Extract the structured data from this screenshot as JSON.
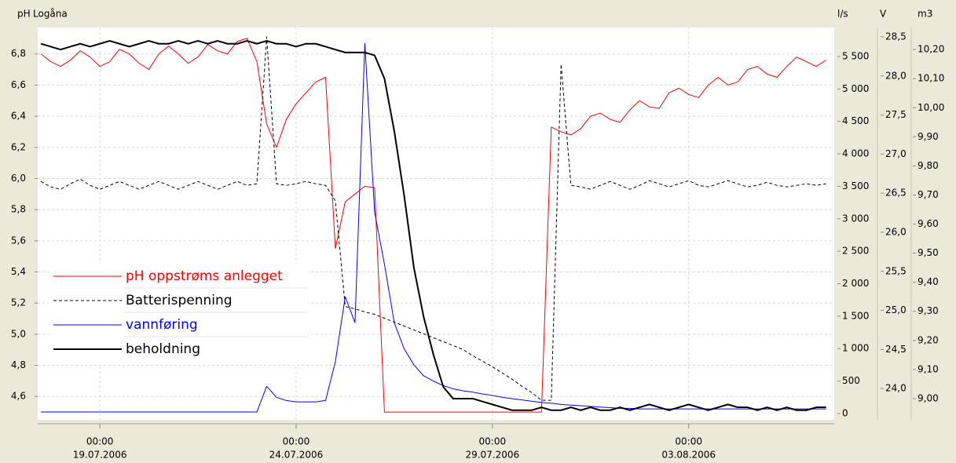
{
  "chart_data": {
    "type": "line",
    "title": "Logåna",
    "ylabel": "pH",
    "y2label": "l/s",
    "y3label": "V",
    "y4label": "m3",
    "grid": true,
    "legend": "left",
    "xlim": [
      "2006-07-17T10:00",
      "2006-08-06T17:00"
    ],
    "xticks": [
      {
        "value": "2006-07-19T00:00",
        "label": [
          "00:00",
          "19.07.2006"
        ]
      },
      {
        "value": "2006-07-24T00:00",
        "label": [
          "00:00",
          "24.07.2006"
        ]
      },
      {
        "value": "2006-07-29T00:00",
        "label": [
          "00:00",
          "29.07.2006"
        ]
      },
      {
        "value": "2006-08-03T00:00",
        "label": [
          "00:00",
          "03.08.2006"
        ]
      }
    ],
    "ylim": [
      4.45,
      6.97
    ],
    "yticks": [
      {
        "value": 4.6,
        "label": "4,6"
      },
      {
        "value": 4.8,
        "label": "4,8"
      },
      {
        "value": 5.0,
        "label": "5,0"
      },
      {
        "value": 5.2,
        "label": "5,2"
      },
      {
        "value": 5.4,
        "label": "5,4"
      },
      {
        "value": 5.6,
        "label": "5,6"
      },
      {
        "value": 5.8,
        "label": "5,8"
      },
      {
        "value": 6.0,
        "label": "6,0"
      },
      {
        "value": 6.2,
        "label": "6,2"
      },
      {
        "value": 6.4,
        "label": "6,4"
      },
      {
        "value": 6.6,
        "label": "6,6"
      },
      {
        "value": 6.8,
        "label": "6,8"
      }
    ],
    "y2lim": [
      -97,
      5947
    ],
    "y2ticks": [
      0,
      500,
      {
        "value": 1000,
        "label": "1 000"
      },
      {
        "value": 1500,
        "label": "1 500"
      },
      {
        "value": 2000,
        "label": "2 000"
      },
      {
        "value": 2500,
        "label": "2 500"
      },
      {
        "value": 3000,
        "label": "3 000"
      },
      {
        "value": 3500,
        "label": "3 500"
      },
      {
        "value": 4000,
        "label": "4 000"
      },
      {
        "value": 4500,
        "label": "4 500"
      },
      {
        "value": 5000,
        "label": "5 000"
      },
      {
        "value": 5500,
        "label": "5 500"
      }
    ],
    "y3lim": [
      23.6,
      28.62
    ],
    "y3ticks": [
      {
        "value": 24.0,
        "label": "24,0"
      },
      {
        "value": 24.5,
        "label": "24,5"
      },
      {
        "value": 25.0,
        "label": "25,0"
      },
      {
        "value": 25.5,
        "label": "25,5"
      },
      {
        "value": 26.0,
        "label": "26,0"
      },
      {
        "value": 26.5,
        "label": "26,5"
      },
      {
        "value": 27.0,
        "label": "27,0"
      },
      {
        "value": 27.5,
        "label": "27,5"
      },
      {
        "value": 28.0,
        "label": "28,0"
      },
      {
        "value": 28.5,
        "label": "28,5"
      }
    ],
    "y4lim": [
      8.927,
      10.276
    ],
    "y4ticks": [
      {
        "value": 9.0,
        "label": "9,00"
      },
      {
        "value": 9.1,
        "label": "9,10"
      },
      {
        "value": 9.2,
        "label": "9,20"
      },
      {
        "value": 9.3,
        "label": "9,30"
      },
      {
        "value": 9.4,
        "label": "9,40"
      },
      {
        "value": 9.5,
        "label": "9,50"
      },
      {
        "value": 9.6,
        "label": "9,60"
      },
      {
        "value": 9.7,
        "label": "9,70"
      },
      {
        "value": 9.8,
        "label": "9,80"
      },
      {
        "value": 9.9,
        "label": "9,90"
      },
      {
        "value": 10.0,
        "label": "10,00"
      },
      {
        "value": 10.1,
        "label": "10,10"
      },
      {
        "value": 10.2,
        "label": "10,20"
      }
    ],
    "x": [
      "2006-07-17T12:00",
      "2006-07-17T18:00",
      "2006-07-18T00:00",
      "2006-07-18T06:00",
      "2006-07-18T12:00",
      "2006-07-18T18:00",
      "2006-07-19T00:00",
      "2006-07-19T06:00",
      "2006-07-19T12:00",
      "2006-07-19T18:00",
      "2006-07-20T00:00",
      "2006-07-20T06:00",
      "2006-07-20T12:00",
      "2006-07-20T18:00",
      "2006-07-21T00:00",
      "2006-07-21T06:00",
      "2006-07-21T12:00",
      "2006-07-21T18:00",
      "2006-07-22T00:00",
      "2006-07-22T06:00",
      "2006-07-22T12:00",
      "2006-07-22T18:00",
      "2006-07-23T00:00",
      "2006-07-23T06:00",
      "2006-07-23T12:00",
      "2006-07-23T18:00",
      "2006-07-24T00:00",
      "2006-07-24T06:00",
      "2006-07-24T12:00",
      "2006-07-24T18:00",
      "2006-07-25T00:00",
      "2006-07-25T06:00",
      "2006-07-25T12:00",
      "2006-07-25T18:00",
      "2006-07-26T00:00",
      "2006-07-26T06:00",
      "2006-07-26T12:00",
      "2006-07-26T18:00",
      "2006-07-27T00:00",
      "2006-07-27T06:00",
      "2006-07-27T12:00",
      "2006-07-27T18:00",
      "2006-07-28T00:00",
      "2006-07-28T06:00",
      "2006-07-28T12:00",
      "2006-07-28T18:00",
      "2006-07-29T00:00",
      "2006-07-29T06:00",
      "2006-07-29T12:00",
      "2006-07-29T18:00",
      "2006-07-30T00:00",
      "2006-07-30T06:00",
      "2006-07-30T12:00",
      "2006-07-30T18:00",
      "2006-07-31T00:00",
      "2006-07-31T06:00",
      "2006-07-31T12:00",
      "2006-07-31T18:00",
      "2006-08-01T00:00",
      "2006-08-01T06:00",
      "2006-08-01T12:00",
      "2006-08-01T18:00",
      "2006-08-02T00:00",
      "2006-08-02T06:00",
      "2006-08-02T12:00",
      "2006-08-02T18:00",
      "2006-08-03T00:00",
      "2006-08-03T06:00",
      "2006-08-03T12:00",
      "2006-08-03T18:00",
      "2006-08-04T00:00",
      "2006-08-04T06:00",
      "2006-08-04T12:00",
      "2006-08-04T18:00",
      "2006-08-05T00:00",
      "2006-08-05T06:00",
      "2006-08-05T12:00",
      "2006-08-05T18:00",
      "2006-08-06T00:00",
      "2006-08-06T06:00",
      "2006-08-06T12:00"
    ],
    "series": [
      {
        "name": "pH oppstrøms anlegget",
        "color": "#ff0000",
        "axis": "y",
        "line_style": "solid",
        "line_width": 1,
        "values": [
          6.8,
          6.75,
          6.72,
          6.76,
          6.82,
          6.78,
          6.72,
          6.75,
          6.83,
          6.8,
          6.74,
          6.7,
          6.8,
          6.85,
          6.8,
          6.74,
          6.78,
          6.86,
          6.82,
          6.8,
          6.88,
          6.9,
          6.75,
          6.35,
          6.2,
          6.38,
          6.48,
          6.55,
          6.62,
          6.65,
          5.55,
          5.85,
          5.9,
          5.95,
          5.94,
          4.5,
          4.5,
          4.5,
          4.5,
          4.5,
          4.5,
          4.5,
          4.5,
          4.5,
          4.5,
          4.5,
          4.5,
          4.5,
          4.5,
          4.5,
          4.5,
          4.5,
          6.33,
          6.3,
          6.28,
          6.32,
          6.4,
          6.42,
          6.38,
          6.36,
          6.44,
          6.5,
          6.46,
          6.45,
          6.55,
          6.58,
          6.54,
          6.52,
          6.6,
          6.65,
          6.6,
          6.62,
          6.7,
          6.72,
          6.67,
          6.65,
          6.72,
          6.78,
          6.75,
          6.72,
          6.76
        ]
      },
      {
        "name": "Batterispenning",
        "color": "#000000",
        "axis": "y3",
        "line_style": "dashed",
        "line_width": 1,
        "values": [
          26.65,
          26.58,
          26.55,
          26.62,
          26.68,
          26.6,
          26.55,
          26.6,
          26.65,
          26.6,
          26.55,
          26.6,
          26.65,
          26.6,
          26.55,
          26.6,
          26.65,
          26.6,
          26.55,
          26.6,
          26.65,
          26.6,
          26.62,
          28.5,
          26.62,
          26.6,
          26.62,
          26.65,
          26.62,
          26.6,
          26.4,
          25.05,
          25.02,
          24.98,
          24.95,
          24.9,
          24.85,
          24.8,
          24.75,
          24.7,
          24.65,
          24.6,
          24.55,
          24.5,
          24.42,
          24.35,
          24.28,
          24.2,
          24.12,
          24.03,
          23.95,
          23.85,
          23.85,
          28.15,
          26.6,
          26.58,
          26.55,
          26.6,
          26.65,
          26.6,
          26.55,
          26.6,
          26.66,
          26.62,
          26.58,
          26.62,
          26.66,
          26.6,
          26.58,
          26.62,
          26.66,
          26.62,
          26.58,
          26.6,
          26.64,
          26.6,
          26.58,
          26.6,
          26.62,
          26.6,
          26.62
        ]
      },
      {
        "name": "vannføring",
        "color": "#0000ff",
        "axis": "y2",
        "line_style": "solid",
        "line_width": 1,
        "values": [
          24,
          24,
          24,
          24,
          24,
          24,
          24,
          24,
          24,
          24,
          24,
          24,
          24,
          24,
          24,
          24,
          24,
          24,
          24,
          24,
          24,
          24,
          24,
          420,
          250,
          200,
          180,
          180,
          180,
          200,
          800,
          1800,
          1400,
          5700,
          3100,
          2300,
          1400,
          1000,
          750,
          580,
          500,
          430,
          380,
          350,
          330,
          300,
          280,
          250,
          230,
          210,
          190,
          170,
          160,
          140,
          130,
          120,
          110,
          100,
          90,
          80,
          80,
          70,
          70,
          70,
          70,
          70,
          70,
          70,
          70,
          70,
          70,
          70,
          70,
          70,
          70,
          70,
          70,
          70,
          70,
          70,
          70
        ]
      },
      {
        "name": "beholdning",
        "color": "#000000",
        "axis": "y4",
        "line_style": "solid",
        "line_width": 2,
        "values": [
          10.22,
          10.21,
          10.2,
          10.21,
          10.22,
          10.21,
          10.22,
          10.23,
          10.22,
          10.21,
          10.22,
          10.23,
          10.22,
          10.22,
          10.23,
          10.22,
          10.23,
          10.22,
          10.23,
          10.22,
          10.22,
          10.23,
          10.22,
          10.23,
          10.22,
          10.22,
          10.21,
          10.22,
          10.22,
          10.21,
          10.2,
          10.19,
          10.19,
          10.19,
          10.18,
          10.1,
          9.92,
          9.7,
          9.45,
          9.28,
          9.15,
          9.04,
          9.0,
          9.0,
          9.0,
          8.99,
          8.98,
          8.97,
          8.96,
          8.96,
          8.96,
          8.97,
          8.96,
          8.96,
          8.97,
          8.96,
          8.97,
          8.96,
          8.96,
          8.97,
          8.96,
          8.97,
          8.98,
          8.97,
          8.96,
          8.97,
          8.98,
          8.97,
          8.96,
          8.97,
          8.98,
          8.97,
          8.97,
          8.96,
          8.97,
          8.96,
          8.97,
          8.96,
          8.96,
          8.97,
          8.97
        ]
      }
    ]
  }
}
